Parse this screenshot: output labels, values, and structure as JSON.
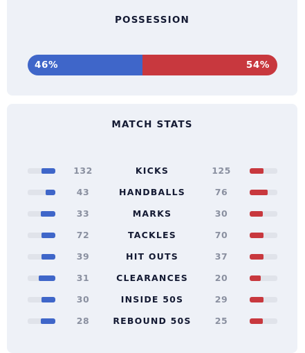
{
  "possession": {
    "title": "POSSESSION",
    "home_label": "46%",
    "away_label": "54%",
    "home_value": 46,
    "away_value": 54,
    "home_color": "#3f66c9",
    "away_color": "#c8383e"
  },
  "match_stats": {
    "title": "MATCH STATS",
    "rows": [
      {
        "label": "KICKS",
        "home": "132",
        "away": "125",
        "home_share": 0.51,
        "away_share": 0.49
      },
      {
        "label": "HANDBALLS",
        "home": "43",
        "away": "76",
        "home_share": 0.36,
        "away_share": 0.64
      },
      {
        "label": "MARKS",
        "home": "33",
        "away": "30",
        "home_share": 0.52,
        "away_share": 0.48
      },
      {
        "label": "TACKLES",
        "home": "72",
        "away": "70",
        "home_share": 0.51,
        "away_share": 0.49
      },
      {
        "label": "HIT OUTS",
        "home": "39",
        "away": "37",
        "home_share": 0.51,
        "away_share": 0.49
      },
      {
        "label": "CLEARANCES",
        "home": "31",
        "away": "20",
        "home_share": 0.61,
        "away_share": 0.39
      },
      {
        "label": "INSIDE 50S",
        "home": "30",
        "away": "29",
        "home_share": 0.51,
        "away_share": 0.49
      },
      {
        "label": "REBOUND 50S",
        "home": "28",
        "away": "25",
        "home_share": 0.53,
        "away_share": 0.47
      }
    ]
  }
}
